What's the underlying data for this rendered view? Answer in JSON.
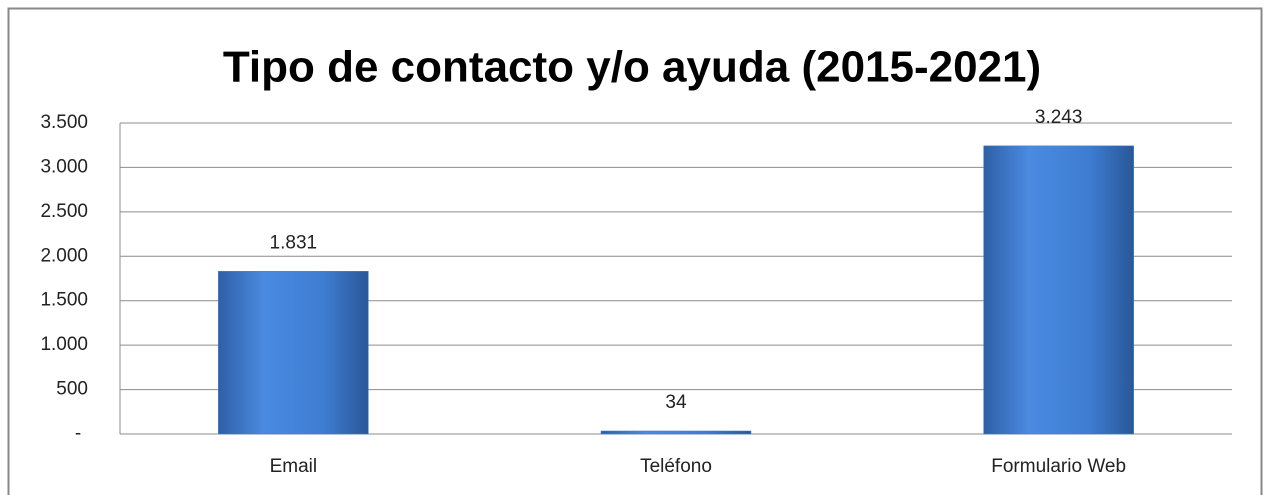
{
  "chart_data": {
    "type": "bar",
    "title": "Tipo de contacto y/o ayuda  (2015-2021)",
    "categories": [
      "Email",
      "Teléfono",
      "Formulario Web"
    ],
    "values": [
      1831,
      34,
      3243
    ],
    "value_labels": [
      "1.831",
      "34",
      "3.243"
    ],
    "color": "#3f7fd4",
    "ylim": [
      0,
      3500
    ],
    "yticks": [
      {
        "value": 0,
        "label": "-"
      },
      500,
      {
        "value": 1000,
        "label": "1.000"
      },
      {
        "value": 1500,
        "label": "1.500"
      },
      {
        "value": 2000,
        "label": "2.000"
      },
      {
        "value": 2500,
        "label": "2.500"
      },
      {
        "value": 3000,
        "label": "3.000"
      },
      {
        "value": 3500,
        "label": "3.500"
      }
    ],
    "grid": true
  }
}
